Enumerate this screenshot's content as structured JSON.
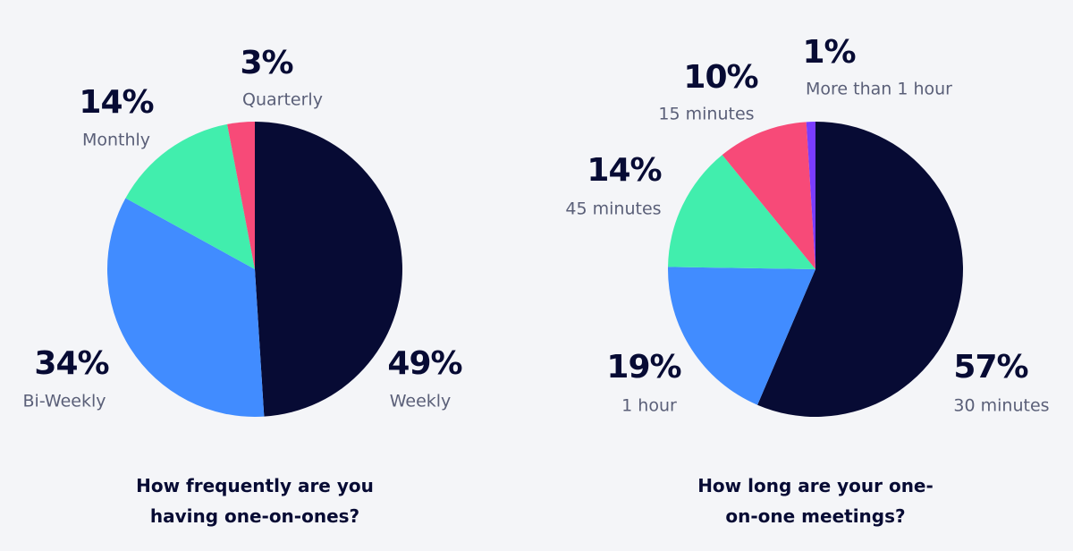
{
  "chart_data": [
    {
      "type": "pie",
      "title": "How frequently are you having one-on-ones?",
      "categories": [
        "Weekly",
        "Bi-Weekly",
        "Monthly",
        "Quarterly"
      ],
      "values": [
        49,
        34,
        14,
        3
      ],
      "value_labels": [
        "49%",
        "34%",
        "14%",
        "3%"
      ],
      "colors": [
        "#070b34",
        "#418cff",
        "#41eead",
        "#f74a78"
      ]
    },
    {
      "type": "pie",
      "title": "How long are your one-on-one meetings?",
      "categories": [
        "30 minutes",
        "1 hour",
        "45 minutes",
        "15 minutes",
        "More than 1 hour"
      ],
      "values": [
        57,
        19,
        14,
        10,
        1
      ],
      "value_labels": [
        "57%",
        "19%",
        "14%",
        "10%",
        "1%"
      ],
      "colors": [
        "#070b34",
        "#418cff",
        "#41eead",
        "#f74a78",
        "#7a3cff"
      ]
    }
  ]
}
